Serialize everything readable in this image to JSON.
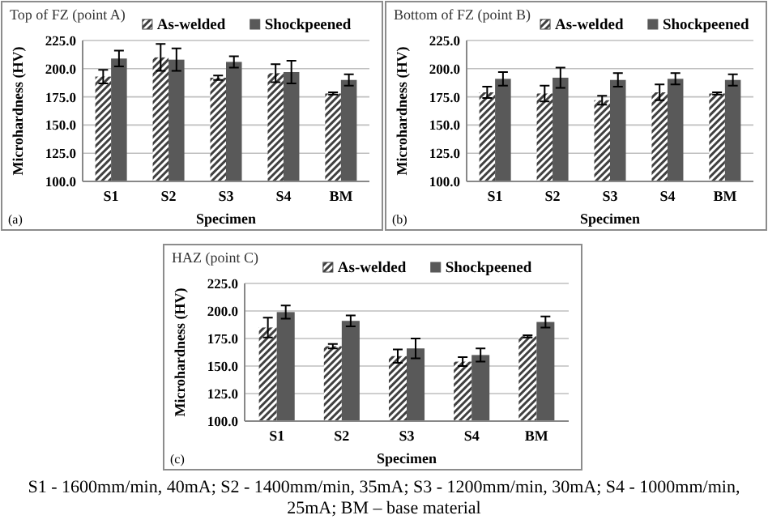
{
  "chart_data": [
    {
      "type": "bar",
      "title": "Top of FZ (point A)",
      "xlabel": "Specimen",
      "ylabel": "Microhardness (HV)",
      "categories": [
        "S1",
        "S2",
        "S3",
        "S4",
        "BM"
      ],
      "series": [
        {
          "name": "As-welded",
          "color": "#404040",
          "values": [
            193,
            210,
            192,
            196,
            178
          ],
          "errors": [
            6,
            12,
            2,
            8,
            1
          ]
        },
        {
          "name": "Shockpeened",
          "color": "#595959",
          "values": [
            209,
            208,
            206,
            197,
            190
          ],
          "errors": [
            7,
            10,
            5,
            10,
            5
          ]
        }
      ],
      "ylim": [
        100,
        225
      ],
      "yticks": [
        {
          "value": 100,
          "label": "100.0"
        },
        {
          "value": 125,
          "label": "125.0"
        },
        {
          "value": 150,
          "label": "150.0"
        },
        {
          "value": 175,
          "label": "175.0"
        },
        {
          "value": 200,
          "label": "200.0"
        },
        {
          "value": 225,
          "label": "225.0"
        }
      ],
      "grid": "y",
      "legend": "top",
      "annotations": [
        "(a)"
      ]
    },
    {
      "type": "bar",
      "title": "Bottom of FZ (point B)",
      "xlabel": "Specimen",
      "ylabel": "Microhardness (HV)",
      "categories": [
        "S1",
        "S2",
        "S3",
        "S4",
        "BM"
      ],
      "series": [
        {
          "name": "As-welded",
          "color": "#404040",
          "values": [
            179,
            178,
            172,
            179,
            178
          ],
          "errors": [
            5,
            7,
            4,
            7,
            1
          ]
        },
        {
          "name": "Shockpeened",
          "color": "#595959",
          "values": [
            191,
            192,
            190,
            191,
            190
          ],
          "errors": [
            6,
            9,
            6,
            5,
            5
          ]
        }
      ],
      "ylim": [
        100,
        225
      ],
      "yticks": [
        {
          "value": 100,
          "label": "100.0"
        },
        {
          "value": 125,
          "label": "125.0"
        },
        {
          "value": 150,
          "label": "150.0"
        },
        {
          "value": 175,
          "label": "175.0"
        },
        {
          "value": 200,
          "label": "200.0"
        },
        {
          "value": 225,
          "label": "225.0"
        }
      ],
      "grid": "y",
      "legend": "top",
      "annotations": [
        "(b)"
      ]
    },
    {
      "type": "bar",
      "title": "HAZ (point C)",
      "xlabel": "Specimen",
      "ylabel": "Microhardness (HV)",
      "categories": [
        "S1",
        "S2",
        "S3",
        "S4",
        "BM"
      ],
      "series": [
        {
          "name": "As-welded",
          "color": "#404040",
          "values": [
            185,
            168,
            159,
            154,
            177
          ],
          "errors": [
            9,
            2,
            6,
            4,
            1
          ]
        },
        {
          "name": "Shockpeened",
          "color": "#595959",
          "values": [
            199,
            191,
            166,
            160,
            190
          ],
          "errors": [
            6,
            5,
            9,
            6,
            5
          ]
        }
      ],
      "ylim": [
        100,
        225
      ],
      "yticks": [
        {
          "value": 100,
          "label": "100.0"
        },
        {
          "value": 125,
          "label": "125.0"
        },
        {
          "value": 150,
          "label": "150.0"
        },
        {
          "value": 175,
          "label": "175.0"
        },
        {
          "value": 200,
          "label": "200.0"
        },
        {
          "value": 225,
          "label": "225.0"
        }
      ],
      "grid": "y",
      "legend": "top",
      "annotations": [
        "(c)",
        "S1 - 1600mm/min, 40mA; S2 - 1400mm/min, 35mA; S3 - 1200mm/min, 30mA; S4 - 1000mm/min, 25mA; BM – base material"
      ]
    }
  ]
}
